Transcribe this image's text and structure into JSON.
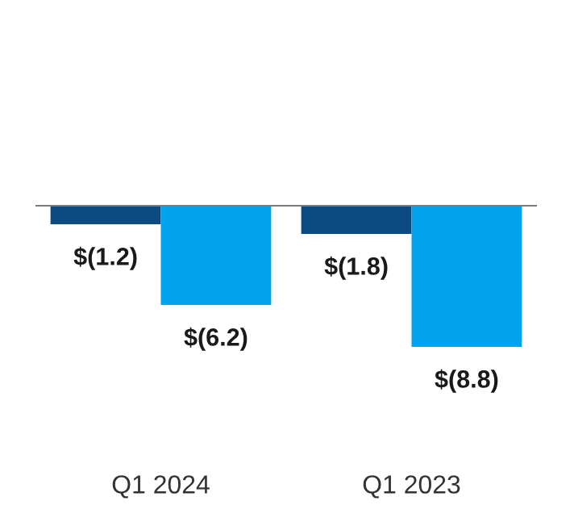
{
  "chart_data": {
    "type": "bar",
    "categories": [
      "Q1 2024",
      "Q1 2023"
    ],
    "series": [
      {
        "color": "#0b4b82",
        "values": [
          -1.2,
          -1.8
        ],
        "value_labels": [
          "$(1.2)",
          "$(1.8)"
        ]
      },
      {
        "color": "#00a2ec",
        "values": [
          -6.2,
          -8.8
        ],
        "value_labels": [
          "$(6.2)",
          "$(8.8)"
        ]
      }
    ],
    "grid": false,
    "legend": false
  }
}
